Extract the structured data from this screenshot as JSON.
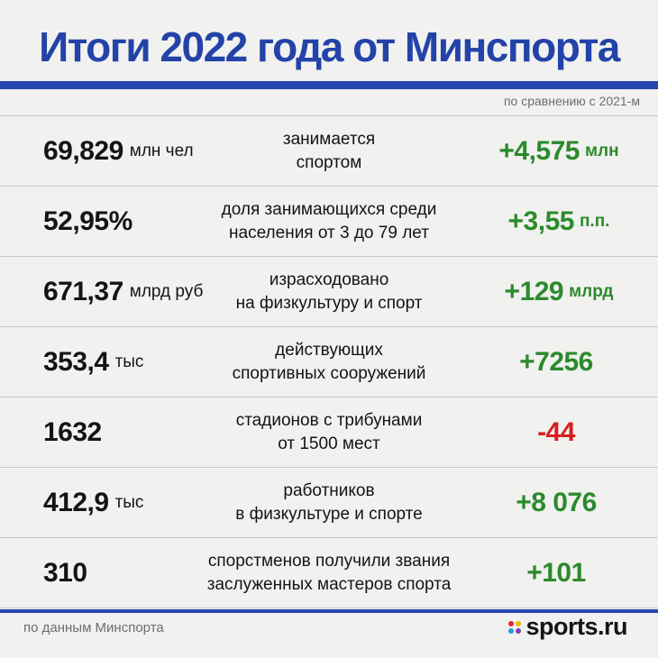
{
  "title": "Итоги 2022 года от Минспорта",
  "comparison_note": "по сравнению с 2021-м",
  "rows": [
    {
      "value": "69,829",
      "unit": "млн чел",
      "desc1": "занимается",
      "desc2": "спортом",
      "delta": "+4,575",
      "delta_unit": "млн",
      "trend": "positive"
    },
    {
      "value": "52,95%",
      "unit": "",
      "desc1": "доля занимающихся  среди",
      "desc2": "населения от 3 до 79 лет",
      "delta": "+3,55",
      "delta_unit": "п.п.",
      "trend": "positive"
    },
    {
      "value": "671,37",
      "unit": "млрд руб",
      "desc1": "израсходовано",
      "desc2": "на физкультуру и спорт",
      "delta": "+129",
      "delta_unit": "млрд",
      "trend": "positive"
    },
    {
      "value": "353,4",
      "unit": "тыс",
      "desc1": "действующих",
      "desc2": "спортивных сооружений",
      "delta": "+7256",
      "delta_unit": "",
      "trend": "positive"
    },
    {
      "value": "1632",
      "unit": "",
      "desc1": "стадионов с трибунами",
      "desc2": "от 1500 мест",
      "delta": "-44",
      "delta_unit": "",
      "trend": "negative"
    },
    {
      "value": "412,9",
      "unit": "тыс",
      "desc1": "работников",
      "desc2": "в физкультуре и спорте",
      "delta": "+8 076",
      "delta_unit": "",
      "trend": "positive"
    },
    {
      "value": "310",
      "unit": "",
      "desc1": "спорстменов получили звания",
      "desc2": "заслуженных мастеров спорта",
      "delta": "+101",
      "delta_unit": "",
      "trend": "positive"
    }
  ],
  "source": "по данным Минспорта",
  "logo": {
    "text": "sports.ru",
    "dot_colors": [
      "#e3262e",
      "#f7b500",
      "#2b9ad6",
      "#7a3fb4"
    ]
  },
  "colors": {
    "title": "#2443a8",
    "positive": "#2c8a2c",
    "negative": "#d61e1e",
    "rule": "#2646ad"
  }
}
